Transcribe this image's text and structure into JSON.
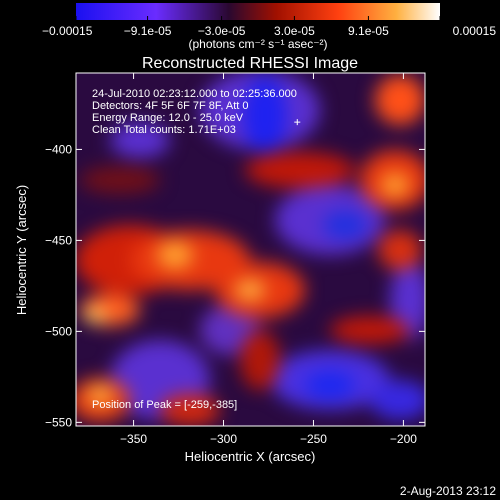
{
  "chart_data": {
    "type": "heatmap",
    "title": "Reconstructed RHESSI Image",
    "xlabel": "Heliocentric X (arcsec)",
    "ylabel": "Heliocentric Y (arcsec)",
    "xlim": [
      -382,
      -188
    ],
    "ylim": [
      -552,
      -358
    ],
    "x_ticks": [
      {
        "value": -350,
        "label": "-350"
      },
      {
        "value": -300,
        "label": "-300"
      },
      {
        "value": -250,
        "label": "-250"
      },
      {
        "value": -200,
        "label": "-200"
      }
    ],
    "y_ticks": [
      {
        "value": -400,
        "label": "-400"
      },
      {
        "value": -450,
        "label": "-450"
      },
      {
        "value": -500,
        "label": "-500"
      },
      {
        "value": -550,
        "label": "-550"
      }
    ],
    "colorbar": {
      "range": [
        -0.00015,
        0.00015
      ],
      "ticks": [
        {
          "value": -0.00015,
          "label": "-0.00015"
        },
        {
          "value": -9.1e-05,
          "label": "-9.1e-05"
        },
        {
          "value": -3e-05,
          "label": "-3.0e-05"
        },
        {
          "value": 3e-05,
          "label": "3.0e-05"
        },
        {
          "value": 9.1e-05,
          "label": "9.1e-05"
        },
        {
          "value": 0.00015,
          "label": "0.00015"
        }
      ],
      "units_label": "(photons cm⁻² s⁻¹ asec⁻²)"
    },
    "info_lines": [
      "24-Jul-2010 02:23:12.000 to 02:25:36.000",
      "Detectors: 4F 5F 6F 7F 8F, Att 0",
      "Energy Range: 12.0 - 25.0 keV",
      "Clean    Total counts: 1.71E+03"
    ],
    "peak_annotation": "Position of Peak = [-259,-385]",
    "peak_position": [
      -259,
      -385
    ],
    "timestamp": "2-Aug-2013 23:12"
  }
}
